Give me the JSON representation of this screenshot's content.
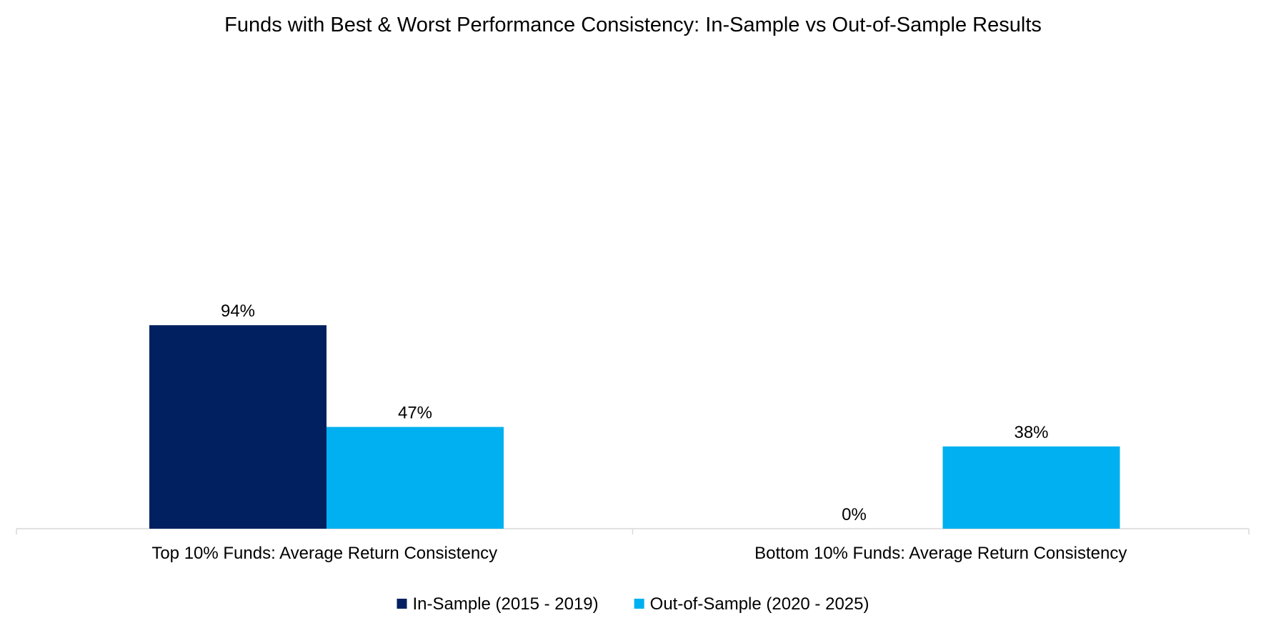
{
  "chart_data": {
    "type": "bar",
    "title": "Funds with Best & Worst Performance Consistency: In-Sample vs Out-of-Sample Results",
    "categories": [
      "Top 10% Funds: Average Return Consistency",
      "Bottom 10% Funds: Average Return Consistency"
    ],
    "series": [
      {
        "name": "In-Sample (2015 - 2019)",
        "color": "#002060",
        "values": [
          94,
          0
        ],
        "labels": [
          "94%",
          "0%"
        ]
      },
      {
        "name": "Out-of-Sample (2020 - 2025)",
        "color": "#00B0F0",
        "values": [
          47,
          38
        ],
        "labels": [
          "47%",
          "38%"
        ]
      }
    ],
    "xlabel": "",
    "ylabel": "",
    "ylim": [
      0,
      100
    ],
    "grid": false,
    "legend": "bottom",
    "axis_color": "#D9D9D9"
  }
}
